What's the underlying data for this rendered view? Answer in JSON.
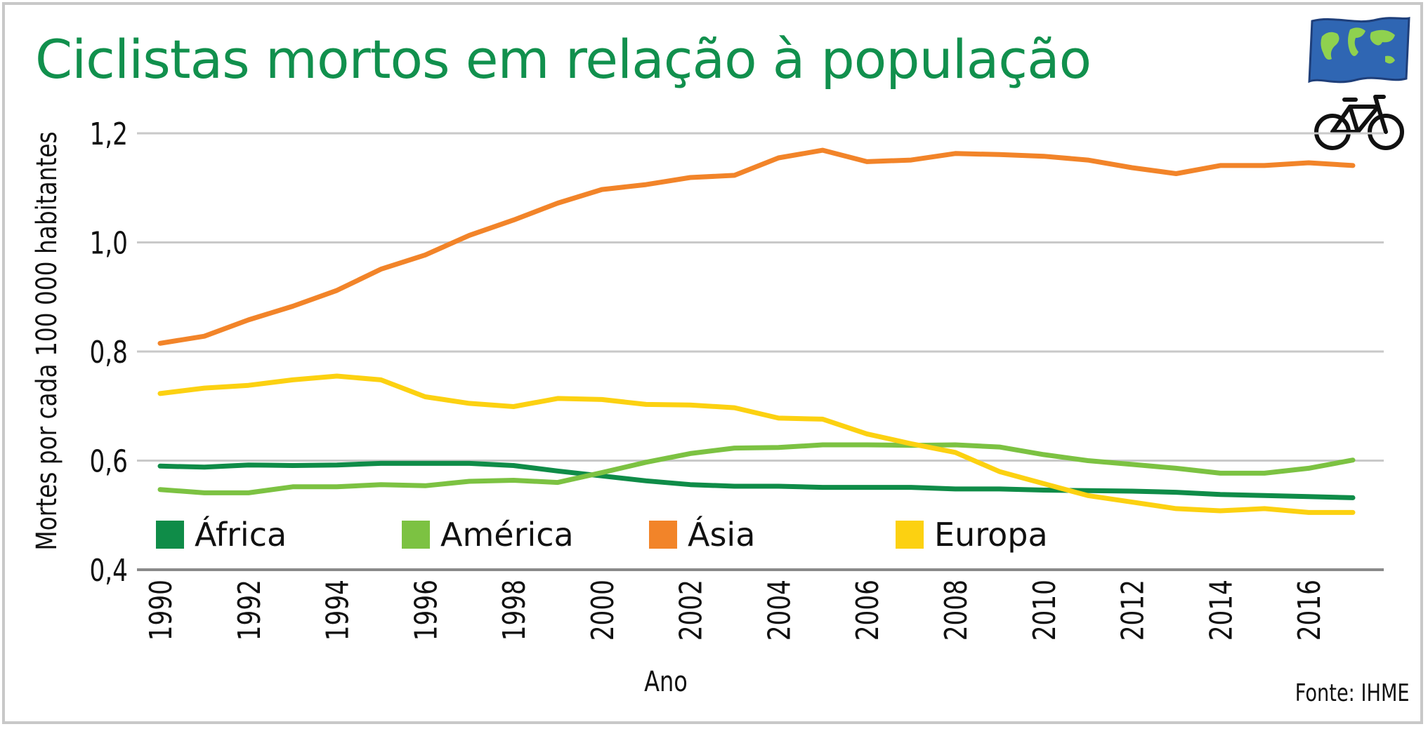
{
  "title": "Ciclistas mortos em relação à população",
  "source": "Fonte: IHME",
  "icons": {
    "flag": "world-map-flag-icon",
    "bike": "bicycle-icon"
  },
  "colors": {
    "title": "#11904d",
    "grid": "#c9c9c9",
    "axis": "#8a8a8a"
  },
  "chart_data": {
    "type": "line",
    "title": "Ciclistas mortos em relação à população",
    "xlabel": "Ano",
    "ylabel": "Mortes por cada 100 000 habitantes",
    "ylim": [
      0.4,
      1.2
    ],
    "xlim": [
      1990,
      2017
    ],
    "y_ticks": [
      0.4,
      0.6,
      0.8,
      1.0,
      1.2
    ],
    "y_tick_labels": [
      "0,4",
      "0,6",
      "0,8",
      "1,0",
      "1,2"
    ],
    "x_ticks": [
      1990,
      1992,
      1994,
      1996,
      1998,
      2000,
      2002,
      2004,
      2006,
      2008,
      2010,
      2012,
      2014,
      2016
    ],
    "x_tick_labels": [
      "1990",
      "1992",
      "1994",
      "1996",
      "1998",
      "2000",
      "2002",
      "2004",
      "2006",
      "2008",
      "2010",
      "2012",
      "2014",
      "2016"
    ],
    "grid": true,
    "legend_position": "bottom-inside",
    "x": [
      1990,
      1991,
      1992,
      1993,
      1994,
      1995,
      1996,
      1997,
      1998,
      1999,
      2000,
      2001,
      2002,
      2003,
      2004,
      2005,
      2006,
      2007,
      2008,
      2009,
      2010,
      2011,
      2012,
      2013,
      2014,
      2015,
      2016,
      2017
    ],
    "series": [
      {
        "name": "África",
        "color": "#0f8c48",
        "values": [
          0.59,
          0.588,
          0.592,
          0.591,
          0.592,
          0.595,
          0.595,
          0.595,
          0.591,
          0.581,
          0.572,
          0.563,
          0.556,
          0.553,
          0.553,
          0.551,
          0.551,
          0.551,
          0.548,
          0.548,
          0.546,
          0.545,
          0.544,
          0.542,
          0.538,
          0.536,
          0.534,
          0.532
        ]
      },
      {
        "name": "América",
        "color": "#7cc242",
        "values": [
          0.547,
          0.541,
          0.541,
          0.552,
          0.552,
          0.556,
          0.554,
          0.562,
          0.564,
          0.56,
          0.578,
          0.597,
          0.613,
          0.623,
          0.624,
          0.629,
          0.629,
          0.628,
          0.629,
          0.625,
          0.611,
          0.6,
          0.593,
          0.586,
          0.577,
          0.577,
          0.586,
          0.601
        ]
      },
      {
        "name": "Ásia",
        "color": "#f28429",
        "values": [
          0.815,
          0.828,
          0.858,
          0.883,
          0.912,
          0.951,
          0.977,
          1.013,
          1.041,
          1.072,
          1.097,
          1.106,
          1.119,
          1.123,
          1.155,
          1.169,
          1.148,
          1.151,
          1.163,
          1.161,
          1.158,
          1.151,
          1.137,
          1.126,
          1.141,
          1.141,
          1.146,
          1.141
        ]
      },
      {
        "name": "Europa",
        "color": "#fcd111",
        "values": [
          0.723,
          0.733,
          0.738,
          0.748,
          0.755,
          0.748,
          0.717,
          0.705,
          0.699,
          0.714,
          0.712,
          0.703,
          0.702,
          0.697,
          0.678,
          0.676,
          0.649,
          0.631,
          0.615,
          0.58,
          0.558,
          0.536,
          0.524,
          0.512,
          0.508,
          0.512,
          0.505,
          0.505
        ]
      }
    ]
  }
}
